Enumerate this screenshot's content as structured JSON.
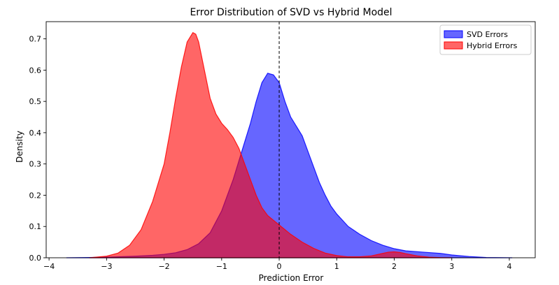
{
  "chart_data": {
    "type": "area",
    "title": "Error Distribution of SVD vs Hybrid Model",
    "xlabel": "Prediction Error",
    "ylabel": "Density",
    "xlim": [
      -4.05,
      4.45
    ],
    "ylim": [
      0,
      0.755
    ],
    "x_ticks": [
      -4,
      -3,
      -2,
      -1,
      0,
      1,
      2,
      3,
      4
    ],
    "x_tick_labels": [
      "−4",
      "−3",
      "−2",
      "−1",
      "0",
      "1",
      "2",
      "3",
      "4"
    ],
    "y_ticks": [
      0.0,
      0.1,
      0.2,
      0.3,
      0.4,
      0.5,
      0.6,
      0.7
    ],
    "y_tick_labels": [
      "0.0",
      "0.1",
      "0.2",
      "0.3",
      "0.4",
      "0.5",
      "0.6",
      "0.7"
    ],
    "grid": false,
    "legend_position": "top-right",
    "reference_line": {
      "x": 0,
      "style": "dashed",
      "color": "#000000"
    },
    "series": [
      {
        "name": "SVD Errors",
        "color": "#0000ff",
        "x": [
          -3.7,
          -3.3,
          -3.0,
          -2.8,
          -2.5,
          -2.2,
          -2.0,
          -1.8,
          -1.6,
          -1.4,
          -1.2,
          -1.0,
          -0.8,
          -0.6,
          -0.5,
          -0.4,
          -0.3,
          -0.2,
          -0.1,
          0.0,
          0.1,
          0.2,
          0.3,
          0.4,
          0.5,
          0.6,
          0.7,
          0.8,
          0.9,
          1.0,
          1.2,
          1.4,
          1.6,
          1.8,
          2.0,
          2.2,
          2.5,
          2.8,
          3.0,
          3.3,
          3.6,
          4.05
        ],
        "values": [
          0.0,
          0.001,
          0.002,
          0.003,
          0.005,
          0.008,
          0.011,
          0.016,
          0.026,
          0.045,
          0.08,
          0.15,
          0.25,
          0.37,
          0.43,
          0.5,
          0.56,
          0.59,
          0.585,
          0.56,
          0.5,
          0.45,
          0.42,
          0.39,
          0.34,
          0.29,
          0.24,
          0.2,
          0.165,
          0.14,
          0.1,
          0.075,
          0.055,
          0.04,
          0.029,
          0.022,
          0.018,
          0.014,
          0.009,
          0.004,
          0.001,
          0.0
        ]
      },
      {
        "name": "Hybrid Errors",
        "color": "#ff0000",
        "x": [
          -3.3,
          -3.0,
          -2.8,
          -2.6,
          -2.4,
          -2.2,
          -2.0,
          -1.9,
          -1.8,
          -1.7,
          -1.6,
          -1.5,
          -1.45,
          -1.4,
          -1.3,
          -1.2,
          -1.1,
          -1.0,
          -0.9,
          -0.8,
          -0.7,
          -0.6,
          -0.5,
          -0.4,
          -0.3,
          -0.2,
          -0.1,
          0.0,
          0.2,
          0.4,
          0.6,
          0.8,
          1.0,
          1.2,
          1.4,
          1.6,
          1.8,
          1.9,
          2.0,
          2.1,
          2.2,
          2.4,
          2.6,
          2.8,
          3.0
        ],
        "values": [
          0.0,
          0.005,
          0.015,
          0.04,
          0.09,
          0.18,
          0.3,
          0.4,
          0.51,
          0.61,
          0.69,
          0.72,
          0.715,
          0.69,
          0.6,
          0.51,
          0.46,
          0.43,
          0.41,
          0.385,
          0.35,
          0.3,
          0.25,
          0.2,
          0.16,
          0.135,
          0.12,
          0.105,
          0.075,
          0.05,
          0.03,
          0.015,
          0.007,
          0.003,
          0.003,
          0.006,
          0.014,
          0.018,
          0.019,
          0.017,
          0.013,
          0.006,
          0.002,
          0.0005,
          0.0
        ]
      }
    ]
  }
}
